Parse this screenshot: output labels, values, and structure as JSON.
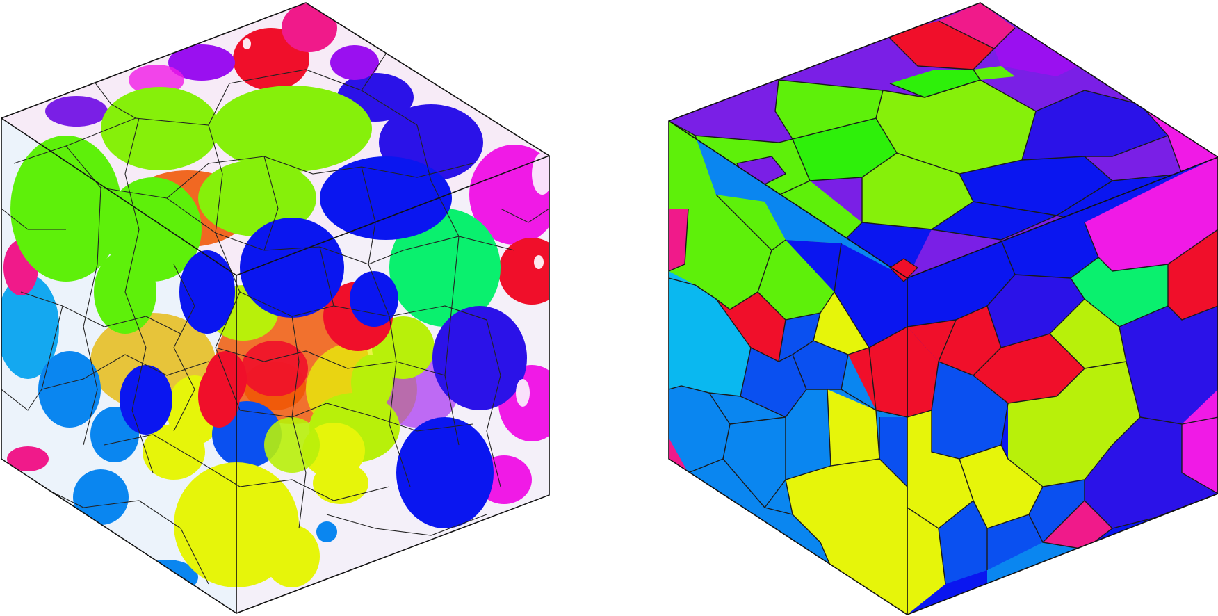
{
  "figure": {
    "panels": [
      {
        "id": "left",
        "description_name": "grain-spheres-cube",
        "style": "transparent"
      },
      {
        "id": "right",
        "description_name": "voronoi-grain-cube",
        "style": "opaque"
      }
    ],
    "palette": {
      "blue": "#0a16f0",
      "deep_blue": "#2b12e8",
      "violet": "#7a1fe6",
      "purple": "#9a10f0",
      "magenta": "#f01ae6",
      "pink": "#f01a8a",
      "red": "#f00f2a",
      "orange": "#f05a0a",
      "yellow": "#e6f50a",
      "yellow_green": "#b8f00a",
      "lime": "#86f00a",
      "green": "#5ef00a",
      "bright_green": "#2ef00a",
      "spring_green": "#0af06e",
      "cyan": "#0ab8f0",
      "sky_blue": "#0a86f0",
      "light_blue": "#14a8f0"
    }
  }
}
